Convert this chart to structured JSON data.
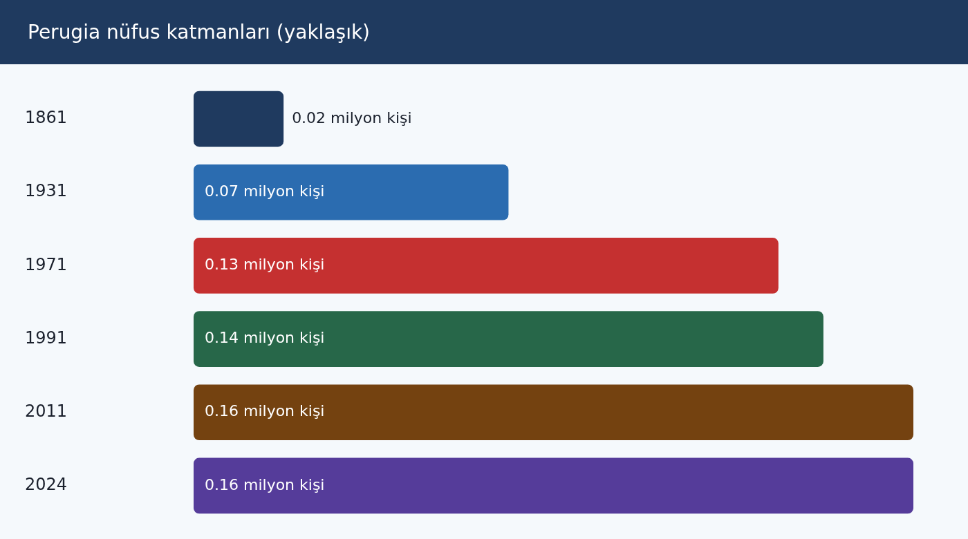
{
  "chart_data": {
    "type": "bar",
    "title": "Perugia nüfus katmanları (yaklaşık)",
    "orientation": "horizontal",
    "categories": [
      "1861",
      "1931",
      "1971",
      "1991",
      "2011",
      "2024"
    ],
    "values": [
      0.02,
      0.07,
      0.13,
      0.14,
      0.16,
      0.16
    ],
    "colors": [
      "#1f3a5f",
      "#2b6cb0",
      "#c53030",
      "#276749",
      "#744210",
      "#553c9a"
    ],
    "value_labels": [
      "0.02 milyon kişi",
      "0.07 milyon kişi",
      "0.13 milyon kişi",
      "0.14 milyon kişi",
      "0.16 milyon kişi",
      "0.16 milyon kişi"
    ]
  }
}
